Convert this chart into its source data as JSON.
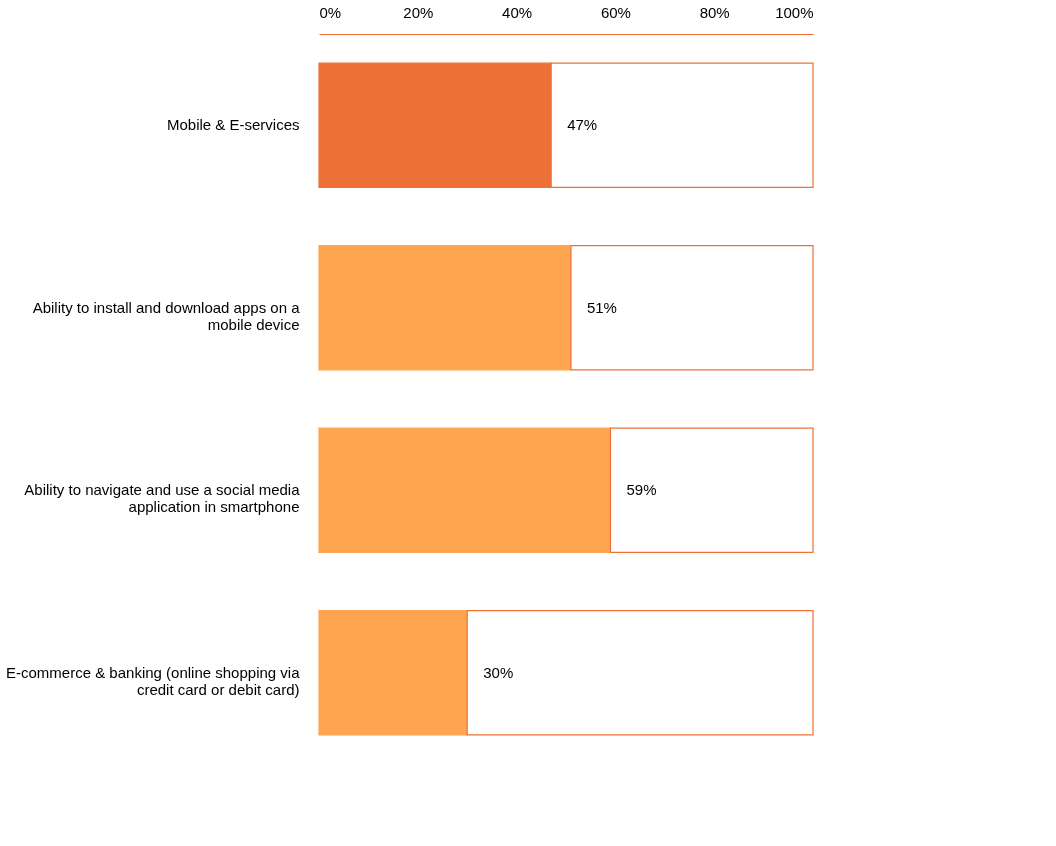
{
  "chart_data": {
    "type": "bar",
    "orientation": "horizontal",
    "stacked": true,
    "categories": [
      "Mobile & E-services",
      "Ability to install and download apps on a mobile device",
      "Ability to navigate and use a social media application in smartphone",
      "E-commerce & banking (online shopping via credit card or debit card)"
    ],
    "series": [
      {
        "colors": [
          "#ed7136",
          "#ffa54f",
          "#ffa54f",
          "#ffa54f"
        ],
        "values": [
          47,
          51,
          59,
          30
        ],
        "value_labels": [
          "47%",
          "51%",
          "59%",
          "30%"
        ]
      },
      {
        "color": "#ffffff",
        "values": [
          53,
          49,
          41,
          70
        ]
      }
    ],
    "xlim": [
      0,
      100
    ],
    "xticks": [
      {
        "value": 0,
        "label": "0%"
      },
      {
        "value": 20,
        "label": "20%"
      },
      {
        "value": 40,
        "label": "40%"
      },
      {
        "value": 60,
        "label": "60%"
      },
      {
        "value": 80,
        "label": "80%"
      },
      {
        "value": 100,
        "label": "100%"
      }
    ],
    "grid": false
  }
}
